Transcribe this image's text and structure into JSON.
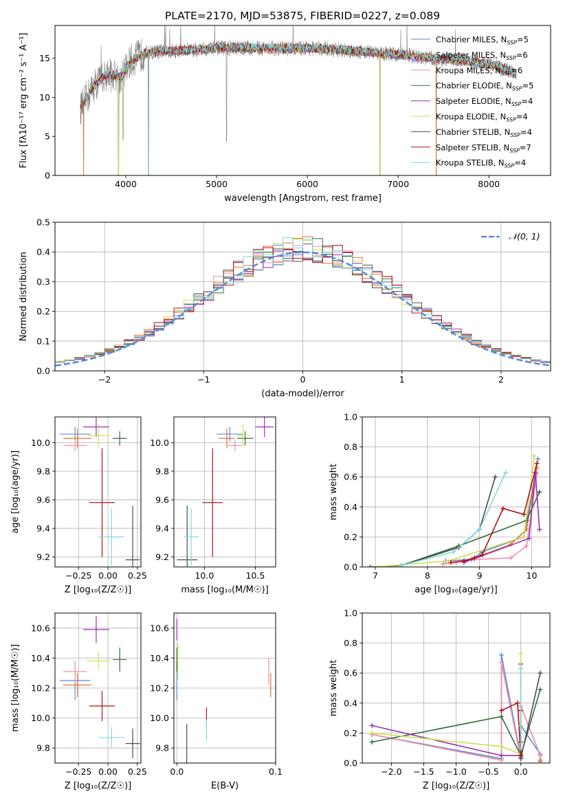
{
  "figure": {
    "title": "PLATE=2170, MJD=53875, FIBERID=0227, z=0.089"
  },
  "colors": {
    "series": [
      "#5b8bd6",
      "#e0752f",
      "#f08fb4",
      "#2e6b3a",
      "#9b2fb0",
      "#cfe050",
      "#4b4b4b",
      "#b31010",
      "#7fd8dd"
    ],
    "spectrum_grey": "#808080",
    "normal_curve": "#5b8bd6",
    "grid": "#b0b0b0"
  },
  "chart_data": [
    {
      "id": "spectrum",
      "type": "line",
      "title": "PLATE=2170, MJD=53875, FIBERID=0227, z=0.089",
      "xlabel": "wavelength [Angstrom, rest frame]",
      "ylabel": "Flux [fλ10⁻¹⁷ erg cm⁻² s⁻¹ A⁻¹]",
      "xlim": [
        3220,
        8680
      ],
      "ylim": [
        0,
        19.2
      ],
      "xticks": [
        4000,
        5000,
        6000,
        7000,
        8000
      ],
      "yticks": [
        0,
        5,
        10,
        15
      ],
      "grid": false,
      "legend_position": "top-right",
      "legend": [
        "Chabrier MILES, N_SSP=5",
        "Salpeter MILES, N_SSP=6",
        "Kroupa MILES, N_SSP=6",
        "Chabrier ELODIE, N_SSP=5",
        "Salpeter ELODIE, N_SSP=4",
        "Kroupa ELODIE, N_SSP=4",
        "Chabrier STELIB, N_SSP=4",
        "Salpeter STELIB, N_SSP=7",
        "Kroupa STELIB, N_SSP=4"
      ],
      "continuum": {
        "x": [
          3500,
          3650,
          3800,
          3950,
          4050,
          4200,
          4400,
          4600,
          4800,
          5000,
          5200,
          5400,
          5600,
          5800,
          6000,
          6200,
          6400,
          6600,
          6800,
          7000,
          7200,
          7400,
          7600,
          7800,
          8000,
          8200,
          8300
        ],
        "y": [
          8.5,
          11.5,
          13.0,
          12.5,
          14.6,
          15.6,
          15.9,
          16.0,
          16.1,
          16.3,
          16.3,
          16.3,
          16.3,
          16.2,
          16.3,
          16.2,
          16.0,
          15.9,
          15.6,
          15.5,
          15.2,
          14.9,
          14.8,
          14.6,
          14.2,
          13.5,
          13.0
        ]
      },
      "absorption_features": [
        {
          "x": 3535,
          "y": 1.5
        },
        {
          "x": 3920,
          "y": 0.0
        },
        {
          "x": 3970,
          "y": 4.5
        },
        {
          "x": 4250,
          "y": 0.0
        },
        {
          "x": 5110,
          "y": 4.3
        },
        {
          "x": 6800,
          "y": 0.0
        },
        {
          "x": 7420,
          "y": 0.0
        }
      ]
    },
    {
      "id": "residuals",
      "type": "step",
      "xlabel": "(data-model)/error",
      "ylabel": "Normed distribution",
      "xlim": [
        -2.5,
        2.5
      ],
      "ylim": [
        0,
        0.5
      ],
      "xticks": [
        -2,
        -1,
        0,
        1,
        2
      ],
      "xtick_labels": [
        "−2",
        "−1",
        "0",
        "1",
        "2"
      ],
      "yticks": [
        0.0,
        0.1,
        0.2,
        0.3,
        0.4,
        0.5
      ],
      "grid": true,
      "legend_position": "top-right",
      "legend": [
        "N(0,1)"
      ],
      "bin_width": 0.1,
      "bin_start": -2.5,
      "normal": {
        "mean": 0,
        "sigma": 1
      }
    },
    {
      "id": "age-vs-Z",
      "type": "errorbar",
      "xlabel": "Z [log₁₀(Z/Z☉)]",
      "ylabel": "age  [log₁₀(age/yr)]",
      "xlim": [
        -0.45,
        0.28
      ],
      "ylim": [
        9.13,
        10.18
      ],
      "xticks": [
        -0.25,
        0.0,
        0.25
      ],
      "xtick_labels": [
        "−0.25",
        "0.00",
        "0.25"
      ],
      "yticks": [
        9.2,
        9.4,
        9.6,
        9.8,
        10.0
      ],
      "grid": true,
      "points": [
        {
          "x": -0.28,
          "y": 10.06,
          "xerr": 0.13,
          "yerr": 0.05
        },
        {
          "x": -0.26,
          "y": 10.03,
          "xerr": 0.12,
          "yerr": 0.07
        },
        {
          "x": -0.28,
          "y": 9.98,
          "xerr": 0.1,
          "yerr": 0.04
        },
        {
          "x": 0.1,
          "y": 10.03,
          "xerr": 0.06,
          "yerr": 0.05
        },
        {
          "x": -0.1,
          "y": 10.11,
          "xerr": 0.11,
          "yerr": 0.07
        },
        {
          "x": -0.08,
          "y": 10.05,
          "xerr": 0.1,
          "yerr": 0.08
        },
        {
          "x": 0.21,
          "y": 9.18,
          "xerr": 0.06,
          "yerr": 0.38
        },
        {
          "x": -0.05,
          "y": 9.58,
          "xerr": 0.11,
          "yerr": 0.38
        },
        {
          "x": 0.03,
          "y": 9.34,
          "xerr": 0.11,
          "yerr": 0.2
        }
      ]
    },
    {
      "id": "age-vs-mass",
      "type": "errorbar",
      "xlabel": "mass [log₁₀(M/M☉)]",
      "xlim": [
        9.7,
        10.7
      ],
      "ylim": [
        9.13,
        10.18
      ],
      "xticks": [
        10.0,
        10.5
      ],
      "xtick_labels": [
        "10.0",
        "10.5"
      ],
      "yticks": [
        9.2,
        9.4,
        9.6,
        9.8,
        10.0
      ],
      "grid": true,
      "points": [
        {
          "x": 10.25,
          "y": 10.06,
          "xerr": 0.13,
          "yerr": 0.05
        },
        {
          "x": 10.22,
          "y": 10.03,
          "xerr": 0.08,
          "yerr": 0.07
        },
        {
          "x": 10.3,
          "y": 9.98,
          "xerr": 0.07,
          "yerr": 0.04
        },
        {
          "x": 10.4,
          "y": 10.03,
          "xerr": 0.08,
          "yerr": 0.05
        },
        {
          "x": 10.59,
          "y": 10.11,
          "xerr": 0.09,
          "yerr": 0.07
        },
        {
          "x": 10.38,
          "y": 10.05,
          "xerr": 0.06,
          "yerr": 0.08
        },
        {
          "x": 9.83,
          "y": 9.18,
          "xerr": 0.1,
          "yerr": 0.38
        },
        {
          "x": 10.08,
          "y": 9.58,
          "xerr": 0.1,
          "yerr": 0.38
        },
        {
          "x": 9.87,
          "y": 9.34,
          "xerr": 0.07,
          "yerr": 0.2
        }
      ]
    },
    {
      "id": "weight-vs-age",
      "type": "line",
      "ylabel": "mass weight",
      "xlabel": "age  [log₁₀(age/yr)]",
      "xlim": [
        6.75,
        10.35
      ],
      "ylim": [
        0,
        1
      ],
      "xticks": [
        7,
        8,
        9,
        10
      ],
      "yticks": [
        0.0,
        0.2,
        0.4,
        0.6,
        0.8,
        1.0
      ],
      "grid": true,
      "series": [
        {
          "x": [
            8.35,
            8.85,
            9.05,
            9.85,
            10.12
          ],
          "y": [
            0.04,
            0.05,
            0.1,
            0.2,
            0.72
          ]
        },
        {
          "x": [
            8.3,
            8.55,
            8.9,
            9.6,
            9.9,
            10.1
          ],
          "y": [
            0.02,
            0.03,
            0.06,
            0.15,
            0.25,
            0.66
          ]
        },
        {
          "x": [
            8.3,
            8.55,
            8.9,
            9.6,
            9.9,
            10.1
          ],
          "y": [
            0.02,
            0.03,
            0.05,
            0.06,
            0.14,
            0.62
          ]
        },
        {
          "x": [
            6.9,
            7.5,
            8.6,
            9.9,
            10.15
          ],
          "y": [
            0.0,
            0.01,
            0.14,
            0.31,
            0.5
          ]
        },
        {
          "x": [
            8.7,
            9.95,
            10.07,
            10.15
          ],
          "y": [
            0.03,
            0.19,
            0.63,
            0.25
          ]
        },
        {
          "x": [
            7.0,
            8.4,
            9.85,
            10.05
          ],
          "y": [
            0.0,
            0.04,
            0.2,
            0.74
          ]
        },
        {
          "x": [
            7.5,
            8.6,
            9.0,
            9.3
          ],
          "y": [
            0.01,
            0.13,
            0.25,
            0.6
          ]
        },
        {
          "x": [
            8.45,
            8.7,
            8.9,
            9.05,
            9.45,
            9.85,
            10.1
          ],
          "y": [
            0.03,
            0.04,
            0.06,
            0.08,
            0.39,
            0.35,
            0.69
          ]
        },
        {
          "x": [
            7.5,
            8.5,
            9.0,
            9.5
          ],
          "y": [
            0.01,
            0.1,
            0.25,
            0.63
          ]
        }
      ]
    },
    {
      "id": "mass-vs-Z",
      "type": "errorbar",
      "xlabel": "Z [log₁₀(Z/Z☉)]",
      "ylabel": "mass [log₁₀(M/M☉)]",
      "xlim": [
        -0.45,
        0.28
      ],
      "ylim": [
        9.7,
        10.7
      ],
      "xticks": [
        -0.25,
        0.0,
        0.25
      ],
      "xtick_labels": [
        "−0.25",
        "0.00",
        "0.25"
      ],
      "yticks": [
        9.8,
        10.0,
        10.2,
        10.4,
        10.6
      ],
      "grid": true,
      "points": [
        {
          "x": -0.28,
          "y": 10.25,
          "xerr": 0.13,
          "yerr": 0.13
        },
        {
          "x": -0.26,
          "y": 10.22,
          "xerr": 0.12,
          "yerr": 0.08
        },
        {
          "x": -0.28,
          "y": 10.31,
          "xerr": 0.1,
          "yerr": 0.07
        },
        {
          "x": 0.1,
          "y": 10.39,
          "xerr": 0.06,
          "yerr": 0.08
        },
        {
          "x": -0.1,
          "y": 10.59,
          "xerr": 0.11,
          "yerr": 0.09
        },
        {
          "x": -0.08,
          "y": 10.38,
          "xerr": 0.1,
          "yerr": 0.06
        },
        {
          "x": 0.21,
          "y": 9.83,
          "xerr": 0.06,
          "yerr": 0.1
        },
        {
          "x": -0.05,
          "y": 10.08,
          "xerr": 0.11,
          "yerr": 0.1
        },
        {
          "x": 0.03,
          "y": 9.87,
          "xerr": 0.11,
          "yerr": 0.07
        }
      ]
    },
    {
      "id": "mass-vs-ebv",
      "type": "errorbar",
      "xlabel": "E(B-V)",
      "xlim": [
        -0.003,
        0.1
      ],
      "ylim": [
        9.7,
        10.7
      ],
      "xticks": [
        0.0,
        0.1
      ],
      "xtick_labels": [
        "0.0",
        "0.1"
      ],
      "yticks": [
        9.8,
        10.0,
        10.2,
        10.4,
        10.6
      ],
      "grid": true,
      "points": [
        {
          "x": 0.0,
          "y": 10.25,
          "xerr": 0,
          "yerr": 0.13
        },
        {
          "x": 0.095,
          "y": 10.22,
          "xerr": 0,
          "yerr": 0.08
        },
        {
          "x": 0.093,
          "y": 10.31,
          "xerr": 0,
          "yerr": 0.09
        },
        {
          "x": 0.0,
          "y": 10.39,
          "xerr": 0,
          "yerr": 0.08
        },
        {
          "x": 0.0,
          "y": 10.59,
          "xerr": 0,
          "yerr": 0.07
        },
        {
          "x": 0.001,
          "y": 10.38,
          "xerr": 0,
          "yerr": 0.12
        },
        {
          "x": 0.01,
          "y": 9.83,
          "xerr": 0,
          "yerr": 0.13
        },
        {
          "x": 0.03,
          "y": 10.0,
          "xerr": 0,
          "yerr": 0.07
        },
        {
          "x": 0.03,
          "y": 9.92,
          "xerr": 0,
          "yerr": 0.07
        }
      ]
    },
    {
      "id": "weight-vs-Z",
      "type": "line",
      "ylabel": "mass weight",
      "xlabel": "Z [log₁₀(Z/Z☉)]",
      "xlim": [
        -2.45,
        0.45
      ],
      "ylim": [
        0,
        1
      ],
      "xticks": [
        -2.0,
        -1.5,
        -1.0,
        -0.5,
        0.0
      ],
      "xtick_labels": [
        "−2.0",
        "−1.5",
        "−1.0",
        "−0.5",
        "0.0"
      ],
      "yticks": [
        0.0,
        0.2,
        0.4,
        0.6,
        0.8,
        1.0
      ],
      "grid": true,
      "series": [
        {
          "x": [
            -2.3,
            -0.3,
            -0.3,
            0.0,
            0.0,
            0.3,
            0.3
          ],
          "y": [
            0.19,
            0.03,
            0.72,
            0.04,
            0.25,
            0.06,
            0.02
          ]
        },
        {
          "x": [
            -2.3,
            -0.3,
            -0.3,
            0.0,
            0.0,
            0.3,
            0.3
          ],
          "y": [
            0.19,
            0.02,
            0.67,
            0.03,
            0.38,
            0.05,
            0.01
          ]
        },
        {
          "x": [
            -2.3,
            -0.3,
            -0.3,
            0.0,
            0.0,
            0.3
          ],
          "y": [
            0.19,
            0.02,
            0.67,
            0.03,
            0.38,
            0.05
          ]
        },
        {
          "x": [
            -2.3,
            -0.3,
            0.0,
            0.3
          ],
          "y": [
            0.14,
            0.31,
            0.05,
            0.49
          ]
        },
        {
          "x": [
            -2.3,
            -0.3,
            0.0,
            0.0
          ],
          "y": [
            0.25,
            0.05,
            0.05,
            0.66
          ]
        },
        {
          "x": [
            -2.3,
            -0.3,
            0.0,
            0.0
          ],
          "y": [
            0.2,
            0.11,
            0.06,
            0.73
          ]
        },
        {
          "x": [
            0.0,
            0.0,
            0.3
          ],
          "y": [
            0.14,
            0.03,
            0.6
          ]
        },
        {
          "x": [
            -0.3,
            -0.05,
            0.0,
            0.0
          ],
          "y": [
            0.35,
            0.4,
            0.05,
            0.35
          ]
        },
        {
          "x": [
            0.0,
            0.0,
            0.0
          ],
          "y": [
            0.63,
            0.25,
            0.1
          ]
        }
      ]
    }
  ]
}
